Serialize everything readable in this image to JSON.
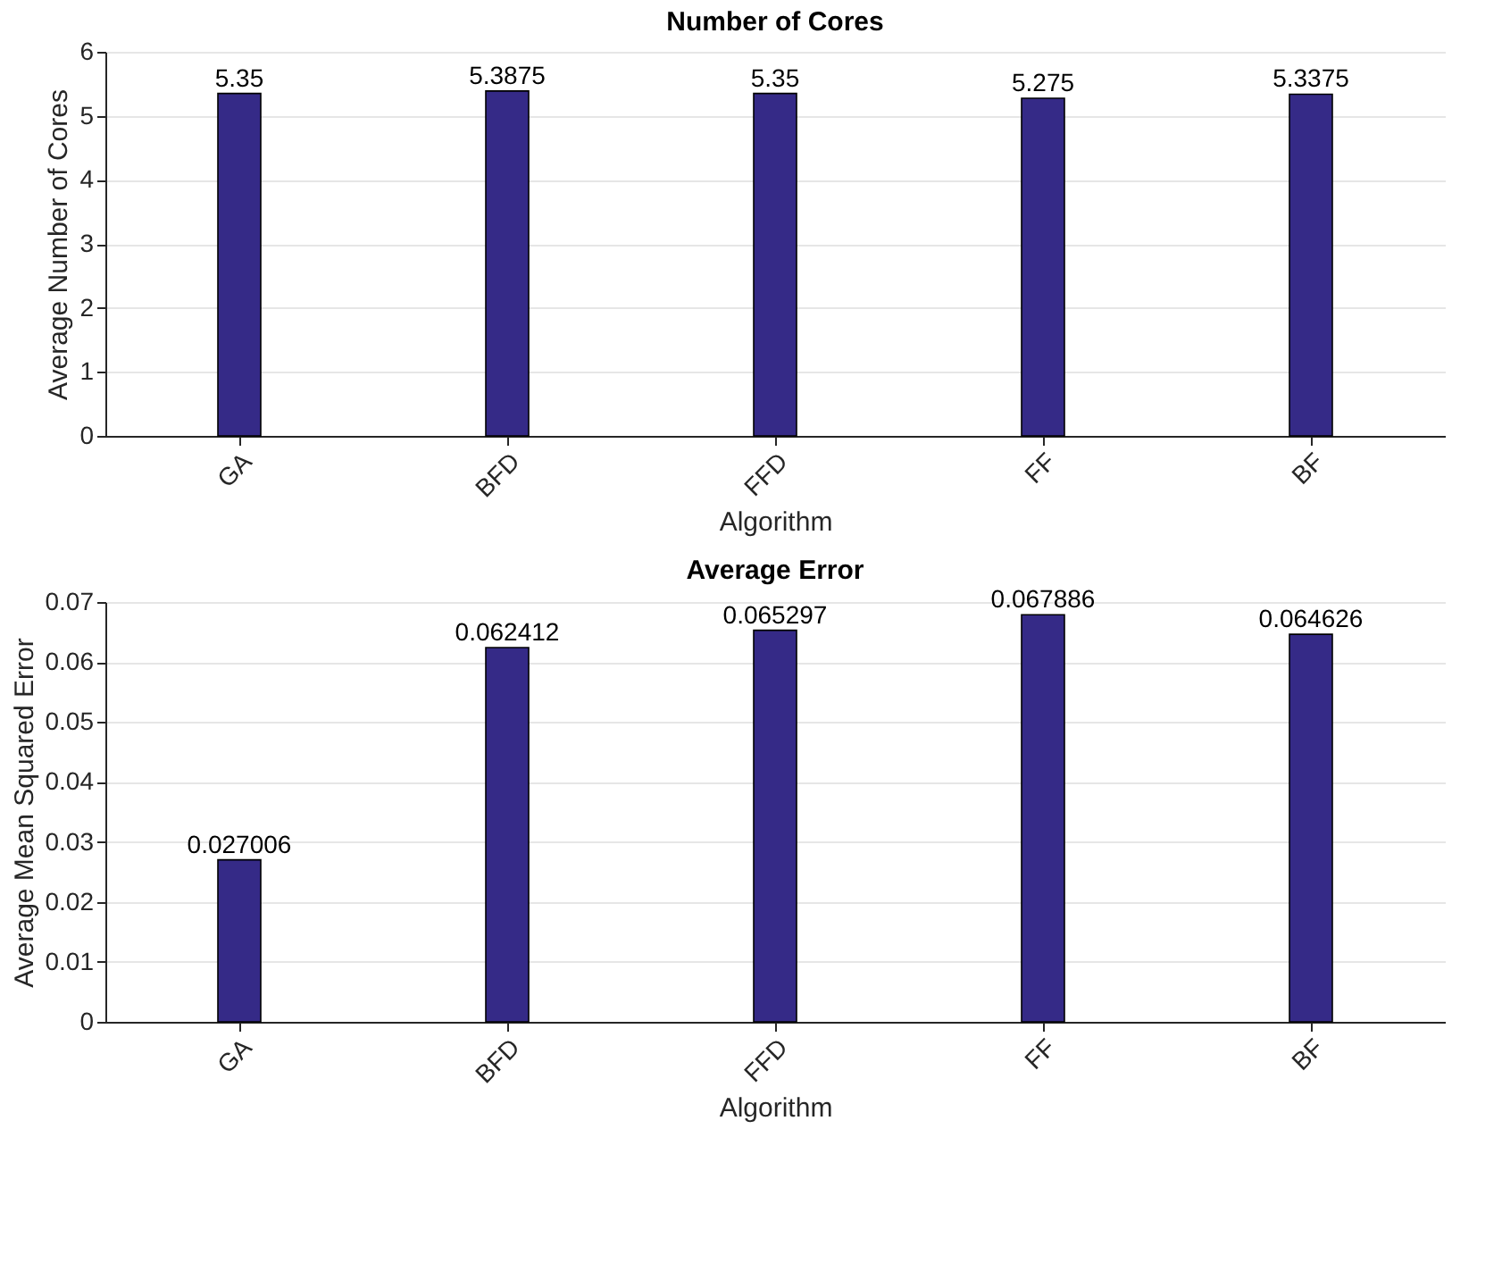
{
  "chart_data": [
    {
      "type": "bar",
      "title": "Number of Cores",
      "xlabel": "Algorithm",
      "ylabel": "Average Number of Cores",
      "categories": [
        "GA",
        "BFD",
        "FFD",
        "FF",
        "BF"
      ],
      "values": [
        5.35,
        5.3875,
        5.35,
        5.275,
        5.3375
      ],
      "color": "#352a87",
      "ylim": [
        0,
        6
      ],
      "yticks": [
        0,
        1,
        2,
        3,
        4,
        5,
        6
      ],
      "grid": "y",
      "data_labels": true
    },
    {
      "type": "bar",
      "title": "Average Error",
      "xlabel": "Algorithm",
      "ylabel": "Average Mean Squared Error",
      "categories": [
        "GA",
        "BFD",
        "FFD",
        "FF",
        "BF"
      ],
      "values": [
        0.027006,
        0.062412,
        0.065297,
        0.067886,
        0.064626
      ],
      "color": "#352a87",
      "ylim": [
        0,
        0.07
      ],
      "yticks": [
        0,
        0.01,
        0.02,
        0.03,
        0.04,
        0.05,
        0.06,
        0.07
      ],
      "grid": "y",
      "data_labels": true
    }
  ]
}
